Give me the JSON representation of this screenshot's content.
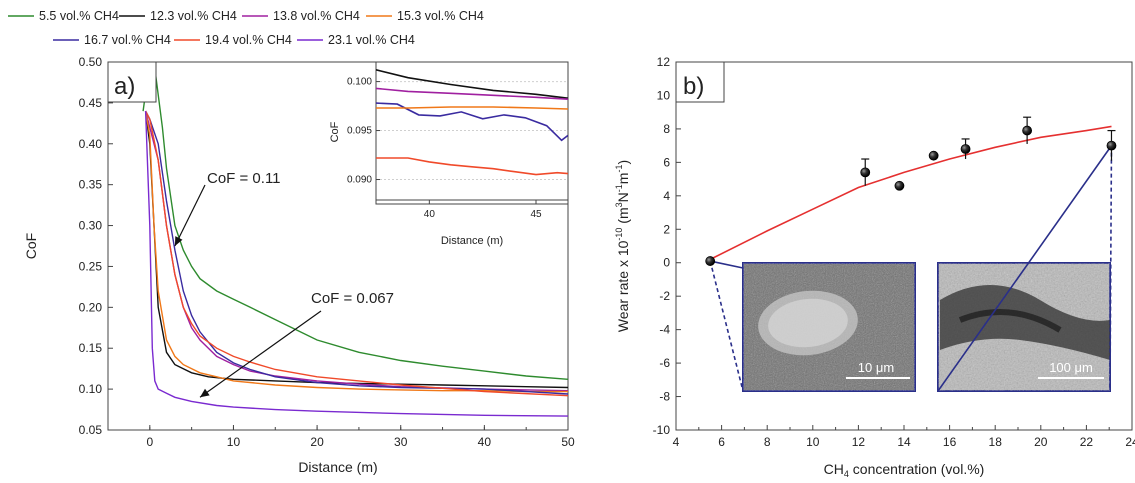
{
  "legend": [
    {
      "label": "5.5 vol.% CH4",
      "color": "#2e8b2e"
    },
    {
      "label": "12.3 vol.% CH4",
      "color": "#111111"
    },
    {
      "label": "13.8 vol.% CH4",
      "color": "#a020a0"
    },
    {
      "label": "15.3 vol.% CH4",
      "color": "#f07818"
    },
    {
      "label": "16.7 vol.% CH4",
      "color": "#3a2ba0"
    },
    {
      "label": "19.4 vol.% CH4",
      "color": "#f04a2a"
    },
    {
      "label": "23.1 vol.% CH4",
      "color": "#7a2ad0"
    }
  ],
  "chart_data": [
    {
      "type": "line",
      "panel_label": "a)",
      "xlabel": "Distance (m)",
      "ylabel": "CoF",
      "xlim": [
        -5,
        50
      ],
      "ylim": [
        0.05,
        0.5
      ],
      "xticks": [
        "0",
        "10",
        "20",
        "30",
        "40",
        "50"
      ],
      "yticks": [
        "0.05",
        "0.10",
        "0.15",
        "0.20",
        "0.25",
        "0.30",
        "0.35",
        "0.40",
        "0.45",
        "0.50"
      ],
      "annotations": [
        {
          "text": "CoF = 0.11",
          "target_x": 3,
          "target_y": 0.275
        },
        {
          "text": "CoF = 0.067",
          "target_x": 6,
          "target_y": 0.09
        }
      ],
      "series": [
        {
          "name": "5.5 vol.% CH4",
          "color": "#2e8b2e",
          "x": [
            -0.8,
            0,
            0.5,
            1,
            1.5,
            2,
            3,
            4,
            5,
            6,
            8,
            10,
            12,
            15,
            20,
            25,
            30,
            35,
            40,
            45,
            50
          ],
          "y": [
            0.44,
            0.5,
            0.5,
            0.46,
            0.42,
            0.37,
            0.3,
            0.27,
            0.25,
            0.235,
            0.22,
            0.21,
            0.2,
            0.185,
            0.16,
            0.145,
            0.135,
            0.128,
            0.122,
            0.116,
            0.112
          ]
        },
        {
          "name": "12.3 vol.% CH4",
          "color": "#111111",
          "x": [
            -0.5,
            0,
            0.5,
            1,
            2,
            3,
            4,
            5,
            7,
            10,
            15,
            20,
            25,
            30,
            35,
            40,
            45,
            50
          ],
          "y": [
            0.44,
            0.4,
            0.3,
            0.2,
            0.145,
            0.13,
            0.125,
            0.12,
            0.115,
            0.112,
            0.11,
            0.108,
            0.107,
            0.106,
            0.105,
            0.104,
            0.103,
            0.102
          ]
        },
        {
          "name": "13.8 vol.% CH4",
          "color": "#a020a0",
          "x": [
            -0.5,
            0,
            1,
            2,
            3,
            4,
            5,
            6,
            8,
            10,
            12,
            15,
            20,
            25,
            30,
            40,
            50
          ],
          "y": [
            0.44,
            0.42,
            0.38,
            0.3,
            0.24,
            0.2,
            0.175,
            0.16,
            0.14,
            0.13,
            0.122,
            0.116,
            0.11,
            0.106,
            0.103,
            0.1,
            0.098
          ]
        },
        {
          "name": "15.3 vol.% CH4",
          "color": "#f07818",
          "x": [
            -0.5,
            0,
            0.5,
            1,
            2,
            3,
            4,
            6,
            8,
            10,
            15,
            20,
            25,
            30,
            35,
            40,
            45,
            50
          ],
          "y": [
            0.44,
            0.41,
            0.3,
            0.22,
            0.16,
            0.14,
            0.13,
            0.12,
            0.115,
            0.11,
            0.105,
            0.102,
            0.1,
            0.099,
            0.098,
            0.098,
            0.097,
            0.097
          ]
        },
        {
          "name": "16.7 vol.% CH4",
          "color": "#3a2ba0",
          "x": [
            -0.5,
            0,
            1,
            2,
            3,
            4,
            5,
            6,
            8,
            10,
            12,
            15,
            20,
            25,
            30,
            40,
            50
          ],
          "y": [
            0.44,
            0.43,
            0.4,
            0.33,
            0.27,
            0.22,
            0.19,
            0.17,
            0.145,
            0.132,
            0.124,
            0.115,
            0.108,
            0.104,
            0.102,
            0.1,
            0.094
          ]
        },
        {
          "name": "19.4 vol.% CH4",
          "color": "#f04a2a",
          "x": [
            -0.5,
            0,
            1,
            2,
            3,
            4,
            5,
            6,
            8,
            10,
            12,
            15,
            20,
            25,
            30,
            40,
            50
          ],
          "y": [
            0.44,
            0.43,
            0.38,
            0.3,
            0.24,
            0.2,
            0.18,
            0.165,
            0.15,
            0.14,
            0.133,
            0.124,
            0.115,
            0.11,
            0.105,
            0.097,
            0.092
          ]
        },
        {
          "name": "23.1 vol.% CH4",
          "color": "#7a2ad0",
          "x": [
            -0.5,
            0,
            0.3,
            0.6,
            1,
            2,
            3,
            5,
            8,
            10,
            15,
            20,
            30,
            40,
            50
          ],
          "y": [
            0.44,
            0.3,
            0.15,
            0.11,
            0.1,
            0.095,
            0.09,
            0.085,
            0.08,
            0.078,
            0.075,
            0.073,
            0.07,
            0.068,
            0.067
          ]
        }
      ],
      "inset": {
        "xlabel": "Distance (m)",
        "ylabel": "CoF",
        "xlim": [
          37.5,
          46.5
        ],
        "ylim": [
          0.0875,
          0.102
        ],
        "xticks": [
          "40",
          "45"
        ],
        "yticks": [
          "0.090",
          "0.095",
          "0.100"
        ],
        "series": [
          {
            "color": "#111111",
            "x": [
              37.5,
              39,
              41,
              43,
              45,
              46.5
            ],
            "y": [
              0.1012,
              0.1004,
              0.0997,
              0.0991,
              0.0987,
              0.0983
            ]
          },
          {
            "color": "#a020a0",
            "x": [
              37.5,
              39,
              41,
              43,
              45,
              46.5
            ],
            "y": [
              0.0993,
              0.099,
              0.0988,
              0.0986,
              0.0984,
              0.0982
            ]
          },
          {
            "color": "#3a2ba0",
            "x": [
              37.5,
              38.5,
              39.5,
              40.5,
              41.5,
              42.5,
              43.5,
              44.5,
              45.5,
              46.2,
              46.5
            ],
            "y": [
              0.0978,
              0.0977,
              0.0966,
              0.0965,
              0.0969,
              0.0962,
              0.0966,
              0.0963,
              0.0955,
              0.094,
              0.0945
            ]
          },
          {
            "color": "#f07818",
            "x": [
              37.5,
              39,
              41,
              43,
              45,
              46.5
            ],
            "y": [
              0.0973,
              0.0973,
              0.0974,
              0.0974,
              0.0973,
              0.0972
            ]
          },
          {
            "color": "#f04a2a",
            "x": [
              37.5,
              39,
              40,
              41,
              42,
              43,
              44,
              45,
              46,
              46.5
            ],
            "y": [
              0.0922,
              0.0922,
              0.0918,
              0.0915,
              0.0913,
              0.0911,
              0.0908,
              0.0905,
              0.0907,
              0.0906
            ]
          }
        ]
      }
    },
    {
      "type": "scatter",
      "panel_label": "b)",
      "xlabel": "CH4 concentration (vol.%)",
      "ylabel": "Wear rate x 10-10 (m3N-1m-1)",
      "xlim": [
        4,
        24
      ],
      "ylim": [
        -10,
        12
      ],
      "xticks": [
        "4",
        "6",
        "8",
        "10",
        "12",
        "14",
        "16",
        "18",
        "20",
        "22",
        "24"
      ],
      "yticks": [
        "-10",
        "-8",
        "-6",
        "-4",
        "-2",
        "0",
        "2",
        "4",
        "6",
        "8",
        "10",
        "12"
      ],
      "points": [
        {
          "x": 5.5,
          "y": 0.1,
          "err": 0
        },
        {
          "x": 12.3,
          "y": 5.4,
          "err": 0.8
        },
        {
          "x": 13.8,
          "y": 4.6,
          "err": 0
        },
        {
          "x": 15.3,
          "y": 6.4,
          "err": 0
        },
        {
          "x": 16.7,
          "y": 6.8,
          "err": 0.6
        },
        {
          "x": 19.4,
          "y": 7.9,
          "err": 0.8
        },
        {
          "x": 23.1,
          "y": 7.0,
          "err": 0.9
        }
      ],
      "fit": {
        "color": "#e53030",
        "x": [
          5.5,
          8,
          10,
          12,
          14,
          16,
          18,
          20,
          22,
          23.1
        ],
        "y": [
          0.2,
          1.9,
          3.2,
          4.5,
          5.4,
          6.2,
          6.9,
          7.5,
          7.9,
          8.15
        ]
      },
      "sem_images": [
        {
          "scale_label": "10 μm"
        },
        {
          "scale_label": "100 μm"
        }
      ]
    }
  ]
}
